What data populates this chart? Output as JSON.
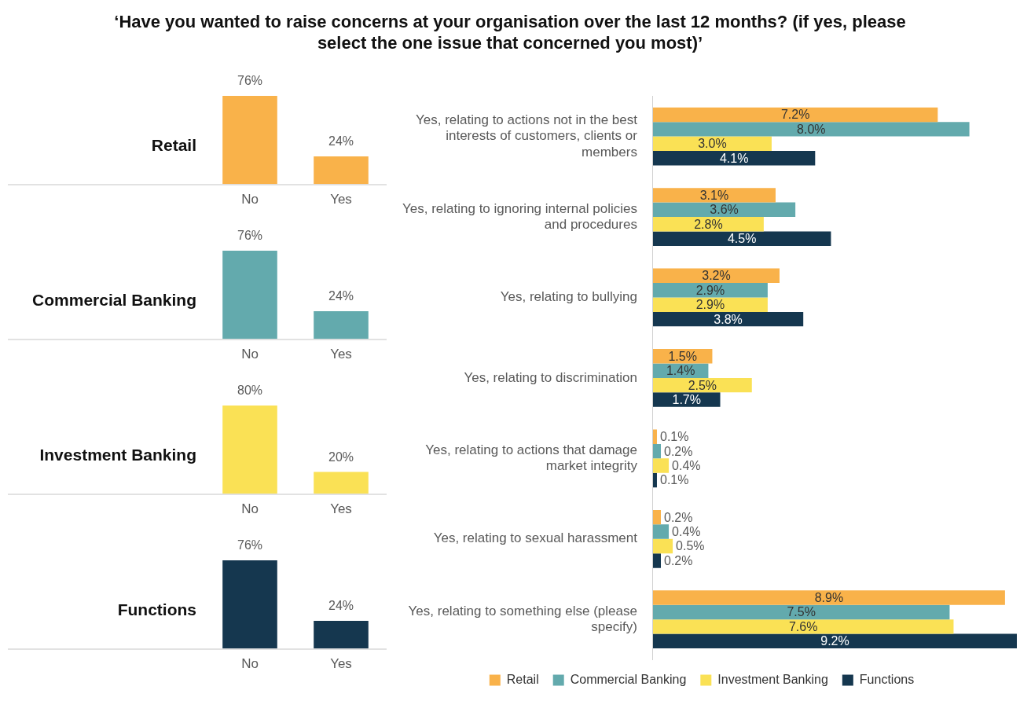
{
  "chart_data": [
    {
      "type": "bar",
      "title": "‘Have you wanted to raise concerns at your organisation over the last 12 months? (if yes, please select the one issue that concerned you most)’",
      "ylabel": "Retail",
      "categories": [
        "No",
        "Yes"
      ],
      "values": [
        76,
        24
      ],
      "value_labels": [
        "76%",
        "24%"
      ],
      "color": "#f9b24a",
      "tick_labels": "x"
    },
    {
      "type": "bar",
      "ylabel": "Commercial Banking",
      "categories": [
        "No",
        "Yes"
      ],
      "values": [
        76,
        24
      ],
      "value_labels": [
        "76%",
        "24%"
      ],
      "color": "#63aaad",
      "tick_labels": "x"
    },
    {
      "type": "bar",
      "ylabel": "Investment Banking",
      "categories": [
        "No",
        "Yes"
      ],
      "values": [
        80,
        20
      ],
      "value_labels": [
        "80%",
        "20%"
      ],
      "color": "#fae155",
      "tick_labels": "x"
    },
    {
      "type": "bar",
      "ylabel": "Functions",
      "categories": [
        "No",
        "Yes"
      ],
      "values": [
        76,
        24
      ],
      "value_labels": [
        "76%",
        "24%"
      ],
      "color": "#15374f",
      "tick_labels": "x"
    },
    {
      "type": "bar",
      "orientation": "horizontal",
      "categories": [
        "Yes, relating to actions not in the best interests of customers, clients or members",
        "Yes, relating to ignoring internal policies and procedures",
        "Yes, relating to bullying",
        "Yes, relating to discrimination",
        "Yes, relating to actions that damage market integrity",
        "Yes, relating to sexual harassment",
        "Yes, relating to something else (please specify)"
      ],
      "tick_labels": "y",
      "legend": "bottom",
      "series": [
        {
          "name": "Retail",
          "color": "#f9b24a",
          "values": [
            7.2,
            3.1,
            3.2,
            1.5,
            0.1,
            0.2,
            8.9
          ],
          "value_labels": [
            "7.2%",
            "3.1%",
            "3.2%",
            "1.5%",
            "0.1%",
            "0.2%",
            "8.9%"
          ]
        },
        {
          "name": "Commercial Banking",
          "color": "#63aaad",
          "values": [
            8.0,
            3.6,
            2.9,
            1.4,
            0.2,
            0.4,
            7.5
          ],
          "value_labels": [
            "8.0%",
            "3.6%",
            "2.9%",
            "1.4%",
            "0.2%",
            "0.4%",
            "7.5%"
          ]
        },
        {
          "name": "Investment Banking",
          "color": "#fae155",
          "values": [
            3.0,
            2.8,
            2.9,
            2.5,
            0.4,
            0.5,
            7.6
          ],
          "value_labels": [
            "3.0%",
            "2.8%",
            "2.9%",
            "2.5%",
            "0.4%",
            "0.5%",
            "7.6%"
          ]
        },
        {
          "name": "Functions",
          "color": "#15374f",
          "values": [
            4.1,
            4.5,
            3.8,
            1.7,
            0.1,
            0.2,
            9.2
          ],
          "value_labels": [
            "4.1%",
            "4.5%",
            "3.8%",
            "1.7%",
            "0.1%",
            "0.2%",
            "9.2%"
          ]
        }
      ]
    }
  ]
}
